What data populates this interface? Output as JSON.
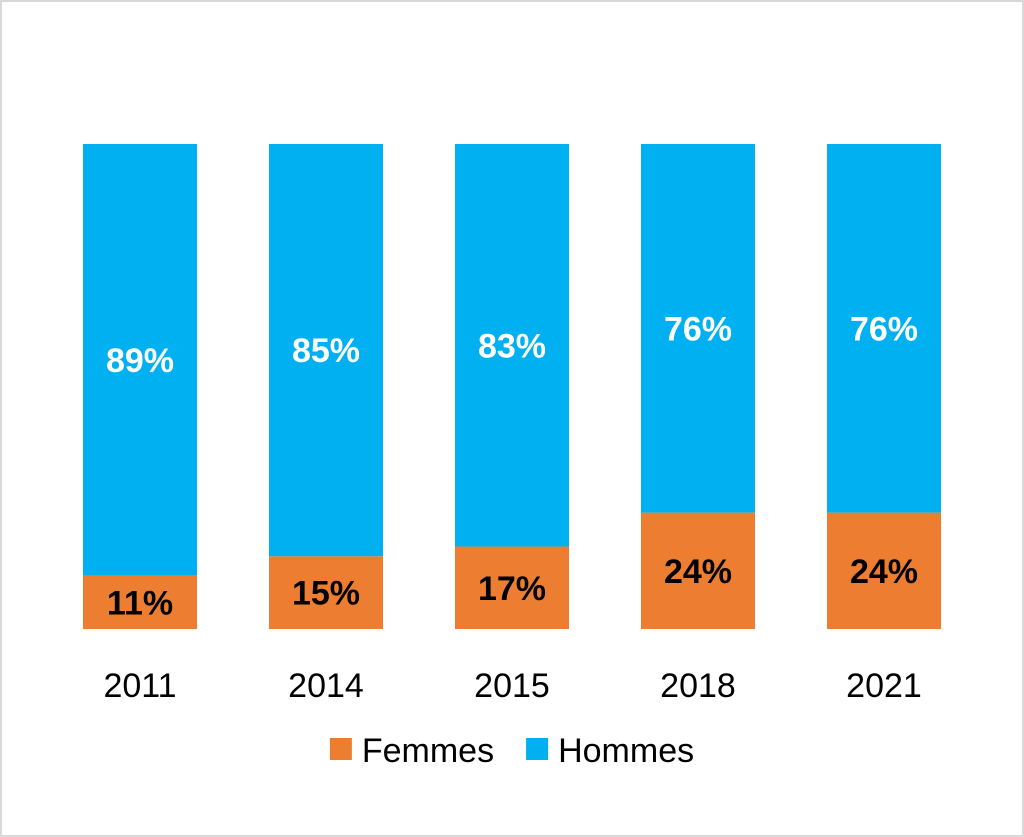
{
  "chart_data": {
    "type": "bar",
    "stacked": true,
    "percent_stacked": true,
    "categories": [
      "2011",
      "2014",
      "2015",
      "2018",
      "2021"
    ],
    "series": [
      {
        "name": "Femmes",
        "values": [
          11,
          15,
          17,
          24,
          24
        ],
        "labels": [
          "11%",
          "15%",
          "17%",
          "24%",
          "24%"
        ],
        "color": "#ed7d31",
        "label_color": "#000000"
      },
      {
        "name": "Hommes",
        "values": [
          89,
          85,
          83,
          76,
          76
        ],
        "labels": [
          "89%",
          "85%",
          "83%",
          "76%",
          "76%"
        ],
        "color": "#00b0f0",
        "label_color": "#ffffff"
      }
    ],
    "ylim": [
      0,
      100
    ],
    "grid": false,
    "legend": "bottom",
    "title": "",
    "xlabel": "",
    "ylabel": ""
  }
}
